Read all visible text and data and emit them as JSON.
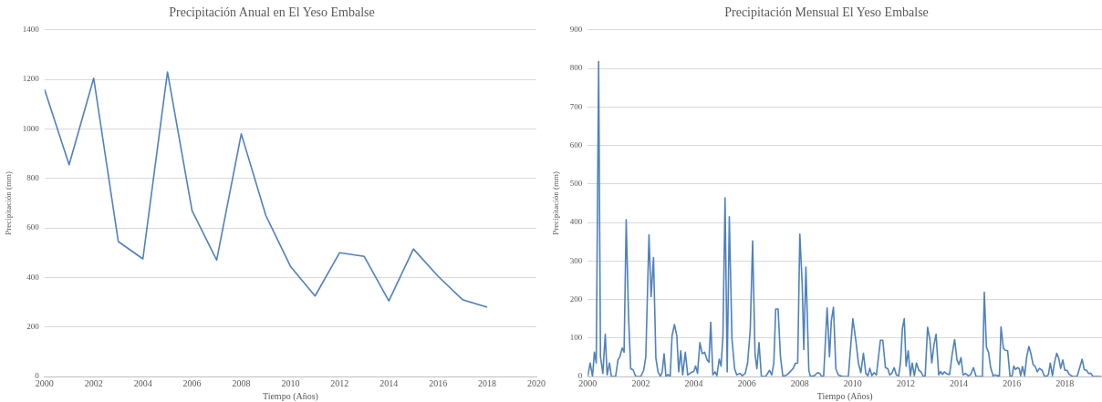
{
  "chart_data": [
    {
      "type": "line",
      "title": "Precipitación Anual en El Yeso Embalse",
      "xlabel": "Tiempo (Años)",
      "ylabel": "Precipitación (mm)",
      "x": [
        2000,
        2001,
        2002,
        2003,
        2004,
        2005,
        2006,
        2007,
        2008,
        2009,
        2010,
        2011,
        2012,
        2013,
        2014,
        2015,
        2016,
        2017,
        2018
      ],
      "series": [
        {
          "color": "#4f81bd",
          "values": [
            1160,
            855,
            1205,
            545,
            475,
            1230,
            670,
            470,
            980,
            650,
            445,
            325,
            500,
            485,
            305,
            515,
            405,
            310,
            280
          ]
        }
      ],
      "xlim": [
        2000,
        2020
      ],
      "xticks": [
        2000,
        2002,
        2004,
        2006,
        2008,
        2010,
        2012,
        2014,
        2016,
        2018,
        2020
      ],
      "ylim": [
        0,
        1400
      ],
      "yticks": [
        0,
        200,
        400,
        600,
        800,
        1000,
        1200,
        1400
      ],
      "grid": "y",
      "line_style": "solid"
    },
    {
      "type": "line",
      "title": "Precipitación Mensual El Yeso Embalse",
      "xlabel": "Tiempo (Años)",
      "ylabel": "Precipitación (mm)",
      "x": [
        2000.0,
        2000.09,
        2000.18,
        2000.25,
        2000.32,
        2000.41,
        2000.48,
        2000.57,
        2000.66,
        2000.73,
        2000.82,
        2000.89,
        2001.05,
        2001.14,
        2001.21,
        2001.3,
        2001.37,
        2001.45,
        2001.54,
        2001.62,
        2001.71,
        2001.81,
        2002.0,
        2002.11,
        2002.19,
        2002.31,
        2002.39,
        2002.48,
        2002.57,
        2002.65,
        2002.74,
        2002.81,
        2002.88,
        2002.95,
        2003.03,
        2003.11,
        2003.18,
        2003.27,
        2003.36,
        2003.43,
        2003.51,
        2003.58,
        2003.68,
        2003.77,
        2003.89,
        2004.0,
        2004.07,
        2004.14,
        2004.23,
        2004.32,
        2004.41,
        2004.5,
        2004.57,
        2004.64,
        2004.72,
        2004.8,
        2004.87,
        2004.96,
        2005.03,
        2005.1,
        2005.18,
        2005.26,
        2005.34,
        2005.44,
        2005.54,
        2005.62,
        2005.74,
        2005.83,
        2005.94,
        2006.03,
        2006.13,
        2006.22,
        2006.31,
        2006.38,
        2006.46,
        2006.55,
        2006.71,
        2006.86,
        2006.94,
        2007.02,
        2007.09,
        2007.18,
        2007.27,
        2007.36,
        2007.51,
        2007.63,
        2007.75,
        2007.83,
        2007.92,
        2008.0,
        2008.09,
        2008.15,
        2008.23,
        2008.34,
        2008.4,
        2008.55,
        2008.67,
        2008.75,
        2008.82,
        2008.9,
        2009.03,
        2009.12,
        2009.19,
        2009.27,
        2009.36,
        2009.45,
        2009.6,
        2009.83,
        2010.0,
        2010.12,
        2010.21,
        2010.3,
        2010.4,
        2010.49,
        2010.57,
        2010.64,
        2010.72,
        2010.8,
        2010.89,
        2011.04,
        2011.13,
        2011.23,
        2011.32,
        2011.39,
        2011.47,
        2011.56,
        2011.64,
        2011.73,
        2011.8,
        2011.87,
        2011.94,
        2012.01,
        2012.09,
        2012.17,
        2012.24,
        2012.32,
        2012.4,
        2012.49,
        2012.57,
        2012.66,
        2012.73,
        2012.82,
        2012.91,
        2012.98,
        2013.06,
        2013.14,
        2013.21,
        2013.24,
        2013.31,
        2013.38,
        2013.45,
        2013.54,
        2013.65,
        2013.75,
        2013.84,
        2013.93,
        2014.0,
        2014.08,
        2014.16,
        2014.25,
        2014.35,
        2014.44,
        2014.55,
        2014.65,
        2014.81,
        2014.89,
        2014.96,
        2015.04,
        2015.12,
        2015.2,
        2015.29,
        2015.36,
        2015.46,
        2015.53,
        2015.59,
        2015.68,
        2015.75,
        2015.84,
        2015.93,
        2016.01,
        2016.07,
        2016.14,
        2016.21,
        2016.28,
        2016.33,
        2016.4,
        2016.48,
        2016.56,
        2016.64,
        2016.72,
        2016.8,
        2016.88,
        2016.96,
        2017.04,
        2017.14,
        2017.22,
        2017.3,
        2017.38,
        2017.45,
        2017.53,
        2017.61,
        2017.69,
        2017.77,
        2017.84,
        2017.92,
        2018.0,
        2018.08,
        2018.17,
        2018.29,
        2018.46,
        2018.56,
        2018.65,
        2018.73,
        2018.82,
        2018.89,
        2018.98,
        2019.06,
        2019.37
      ],
      "series": [
        {
          "color": "#4f81bd",
          "values": [
            0,
            35,
            0,
            63,
            35,
            818,
            51,
            8,
            110,
            4,
            35,
            0,
            0,
            43,
            51,
            74,
            63,
            407,
            153,
            20,
            17,
            0,
            0,
            16,
            51,
            368,
            207,
            309,
            47,
            12,
            0,
            12,
            59,
            0,
            5,
            0,
            106,
            135,
            106,
            12,
            67,
            4,
            63,
            4,
            10,
            13,
            27,
            8,
            88,
            59,
            63,
            43,
            37,
            141,
            4,
            12,
            2,
            45,
            27,
            106,
            464,
            12,
            415,
            98,
            20,
            4,
            8,
            2,
            8,
            35,
            121,
            352,
            59,
            20,
            88,
            0,
            0,
            16,
            4,
            35,
            175,
            175,
            51,
            0,
            4,
            12,
            21,
            34,
            35,
            370,
            239,
            70,
            284,
            16,
            0,
            2,
            10,
            8,
            0,
            2,
            178,
            51,
            145,
            180,
            20,
            4,
            0,
            0,
            150,
            90,
            35,
            10,
            60,
            8,
            2,
            21,
            2,
            10,
            4,
            94,
            94,
            23,
            20,
            4,
            8,
            23,
            4,
            2,
            37,
            125,
            150,
            27,
            67,
            2,
            35,
            2,
            35,
            16,
            12,
            0,
            2,
            128,
            94,
            35,
            82,
            110,
            35,
            4,
            13,
            5,
            12,
            7,
            5,
            59,
            96,
            43,
            31,
            49,
            4,
            8,
            2,
            4,
            23,
            0,
            0,
            0,
            219,
            76,
            63,
            23,
            2,
            4,
            2,
            2,
            129,
            73,
            68,
            67,
            0,
            2,
            27,
            18,
            23,
            20,
            2,
            26,
            2,
            51,
            78,
            59,
            31,
            26,
            12,
            21,
            16,
            2,
            0,
            5,
            35,
            2,
            37,
            60,
            47,
            21,
            43,
            16,
            16,
            5,
            0,
            0,
            23,
            45,
            18,
            16,
            8,
            8,
            0,
            0
          ]
        }
      ],
      "xlim": [
        2000,
        2019.4
      ],
      "xticks": [
        2000,
        2002,
        2004,
        2006,
        2008,
        2010,
        2012,
        2014,
        2016,
        2018
      ],
      "ylim": [
        0,
        900
      ],
      "yticks": [
        0,
        100,
        200,
        300,
        400,
        500,
        600,
        700,
        800,
        900
      ],
      "grid": "y",
      "line_style": "solid"
    }
  ]
}
